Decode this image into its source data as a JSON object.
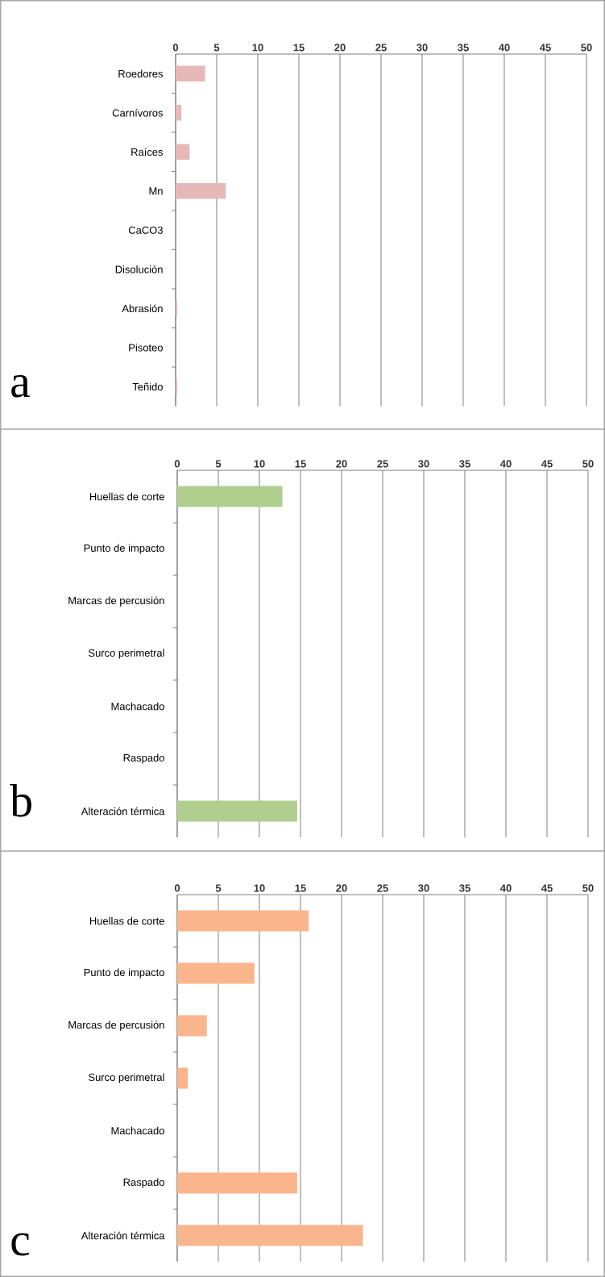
{
  "chart_data": [
    {
      "type": "bar",
      "orientation": "horizontal",
      "categories": [
        "Roedores",
        "Carnívoros",
        "Raíces",
        "Mn",
        "CaCO3",
        "Disolución",
        "Abrasión",
        "Pisoteo",
        "Teñido"
      ],
      "values": [
        3.6,
        0.7,
        1.7,
        6.1,
        0,
        0,
        0.2,
        0,
        0.2
      ],
      "color": "#e6b9b8",
      "xlim": [
        0,
        50
      ],
      "xticks": [
        0,
        5,
        10,
        15,
        20,
        25,
        30,
        35,
        40,
        45,
        50
      ],
      "grid": "x",
      "annotations": [
        "a"
      ]
    },
    {
      "type": "bar",
      "orientation": "horizontal",
      "categories": [
        "Huellas de corte",
        "Punto de impacto",
        "Marcas de percusión",
        "Surco perimetral",
        "Machacado",
        "Raspado",
        "Alteración térmica"
      ],
      "values": [
        12.8,
        0,
        0,
        0,
        0,
        0,
        14.6
      ],
      "color": "#b0cf8f",
      "xlim": [
        0,
        50
      ],
      "xticks": [
        0,
        5,
        10,
        15,
        20,
        25,
        30,
        35,
        40,
        45,
        50
      ],
      "grid": "x",
      "annotations": [
        "b"
      ]
    },
    {
      "type": "bar",
      "orientation": "horizontal",
      "categories": [
        "Huellas de corte",
        "Punto de impacto",
        "Marcas de percusión",
        "Surco perimetral",
        "Machacado",
        "Raspado",
        "Alteración térmica"
      ],
      "values": [
        16.0,
        9.4,
        3.6,
        1.3,
        0,
        14.6,
        22.6
      ],
      "color": "#fbb58c",
      "xlim": [
        0,
        50
      ],
      "xticks": [
        0,
        5,
        10,
        15,
        20,
        25,
        30,
        35,
        40,
        45,
        50
      ],
      "grid": "x",
      "annotations": [
        "c"
      ]
    }
  ]
}
